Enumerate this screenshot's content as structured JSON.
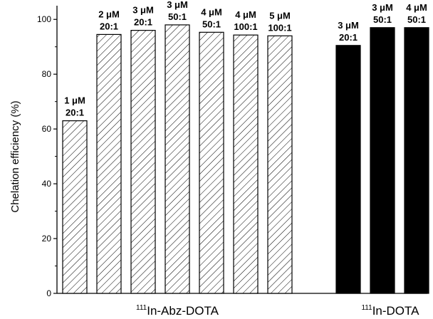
{
  "chart_data": {
    "type": "bar",
    "ylabel": "Chelation efficiency (%)",
    "ylim": [
      0,
      105
    ],
    "yticks": [
      0,
      20,
      40,
      60,
      80,
      100
    ],
    "grid": false,
    "groups": [
      {
        "isotope": "111",
        "name": "In-Abz-DOTA",
        "fill": "hatched",
        "bars": [
          {
            "line1": "1 μM",
            "line2": "20:1",
            "value": 63
          },
          {
            "line1": "2 μM",
            "line2": "20:1",
            "value": 94.5
          },
          {
            "line1": "3 μM",
            "line2": "20:1",
            "value": 96
          },
          {
            "line1": "3 μM",
            "line2": "50:1",
            "value": 98
          },
          {
            "line1": "4 μM",
            "line2": "50:1",
            "value": 95.3
          },
          {
            "line1": "4 μM",
            "line2": "100:1",
            "value": 94.3
          },
          {
            "line1": "5 μM",
            "line2": "100:1",
            "value": 94
          }
        ]
      },
      {
        "isotope": "111",
        "name": "In-DOTA",
        "fill": "solid",
        "bars": [
          {
            "line1": "3 μM",
            "line2": "20:1",
            "value": 90.5
          },
          {
            "line1": "3 μM",
            "line2": "50:1",
            "value": 97
          },
          {
            "line1": "4 μM",
            "line2": "50:1",
            "value": 97
          }
        ]
      }
    ],
    "colors": {
      "solid": "#000000",
      "hatch": "#000000",
      "background": "#ffffff"
    }
  }
}
